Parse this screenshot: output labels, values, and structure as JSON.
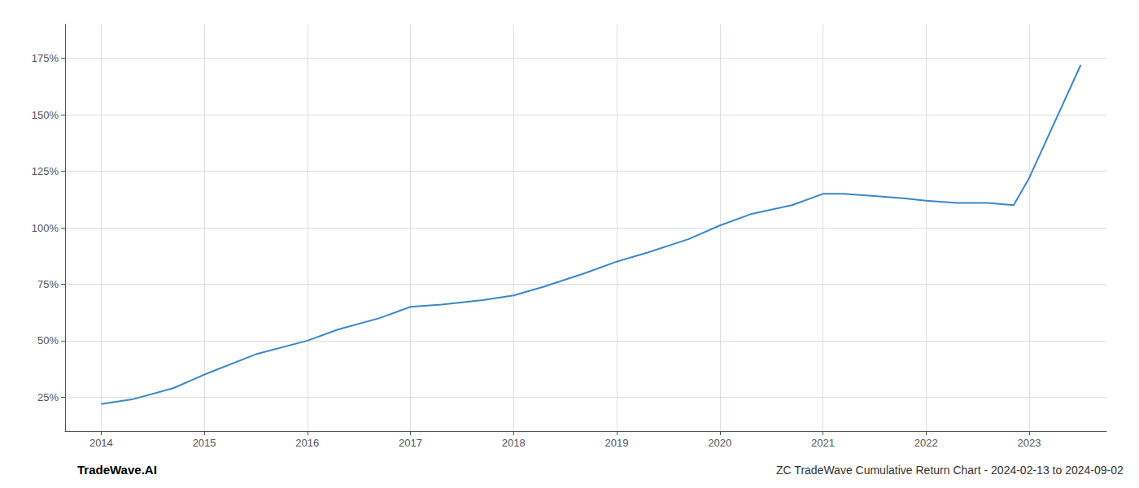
{
  "chart_data": {
    "type": "line",
    "title": "ZC TradeWave Cumulative Return Chart - 2024-02-13 to 2024-09-02",
    "annotations": [
      "TradeWave.AI"
    ],
    "x": [
      2014.0,
      2014.3,
      2014.7,
      2015.0,
      2015.5,
      2016.0,
      2016.3,
      2016.7,
      2017.0,
      2017.3,
      2017.7,
      2018.0,
      2018.3,
      2018.7,
      2019.0,
      2019.3,
      2019.7,
      2020.0,
      2020.3,
      2020.7,
      2021.0,
      2021.2,
      2021.5,
      2021.8,
      2022.0,
      2022.3,
      2022.6,
      2022.85,
      2023.0,
      2023.5
    ],
    "values": [
      22,
      24,
      29,
      35,
      44,
      50,
      55,
      60,
      65,
      66,
      68,
      70,
      74,
      80,
      85,
      89,
      95,
      101,
      106,
      110,
      115,
      115,
      114,
      113,
      112,
      111,
      111,
      110,
      122,
      172
    ],
    "color": "#3a87c8",
    "xlim": [
      2013.65,
      2023.75
    ],
    "xticks": [
      2014,
      2015,
      2016,
      2017,
      2018,
      2019,
      2020,
      2021,
      2022,
      2023
    ],
    "ylim": [
      10,
      190
    ],
    "yticks": [
      {
        "value": 25,
        "label": "25%"
      },
      {
        "value": 50,
        "label": "50%"
      },
      {
        "value": 75,
        "label": "75%"
      },
      {
        "value": 100,
        "label": "100%"
      },
      {
        "value": 125,
        "label": "125%"
      },
      {
        "value": 150,
        "label": "150%"
      },
      {
        "value": 175,
        "label": "175%"
      }
    ],
    "grid": true
  }
}
